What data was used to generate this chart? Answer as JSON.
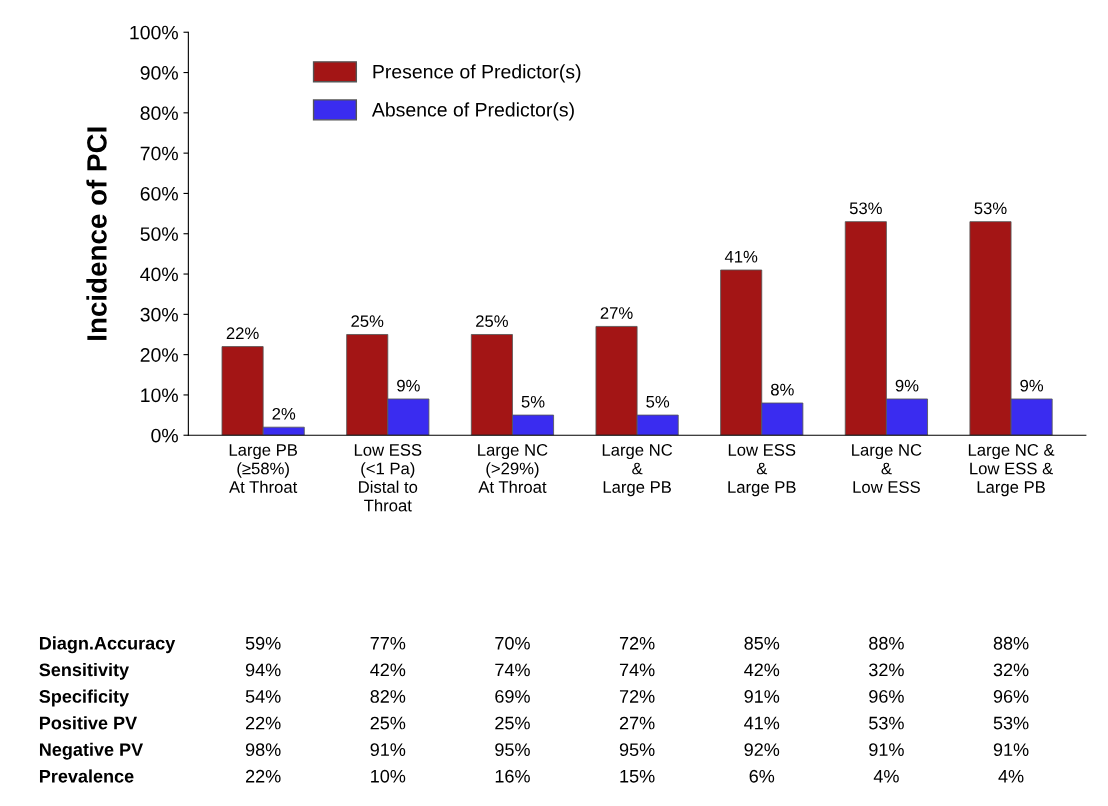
{
  "chart_data": {
    "type": "bar",
    "ylabel": "Incidence of PCI",
    "categories": [
      "Large PB\n(≥58%)\nAt Throat",
      "Low ESS\n(<1 Pa)\nDistal to\nThroat",
      "Large NC\n(>29%)\nAt Throat",
      "Large NC\n&\nLarge PB",
      "Low ESS\n&\nLarge PB",
      "Large NC\n&\nLow ESS",
      "Large NC &\nLow ESS &\nLarge PB"
    ],
    "series": [
      {
        "name": "Presence of Predictor(s)",
        "color": "#a31515",
        "values": [
          22,
          25,
          25,
          27,
          41,
          53,
          53
        ],
        "value_labels": [
          "22%",
          "25%",
          "25%",
          "27%",
          "41%",
          "53%",
          "53%"
        ]
      },
      {
        "name": "Absence of Predictor(s)",
        "color": "#3a2cf0",
        "values": [
          2,
          9,
          5,
          5,
          8,
          9,
          9
        ],
        "value_labels": [
          "2%",
          "9%",
          "5%",
          "5%",
          "8%",
          "9%",
          "9%"
        ]
      }
    ],
    "ylim": [
      0,
      100
    ],
    "yticks": [
      {
        "value": 0,
        "label": "0%"
      },
      {
        "value": 10,
        "label": "10%"
      },
      {
        "value": 20,
        "label": "20%"
      },
      {
        "value": 30,
        "label": "30%"
      },
      {
        "value": 40,
        "label": "40%"
      },
      {
        "value": 50,
        "label": "50%"
      },
      {
        "value": 60,
        "label": "60%"
      },
      {
        "value": 70,
        "label": "70%"
      },
      {
        "value": 80,
        "label": "80%"
      },
      {
        "value": 90,
        "label": "90%"
      },
      {
        "value": 100,
        "label": "100%"
      }
    ],
    "legend": "top left",
    "grid": false,
    "annotations": [
      "Diagn.Accuracy",
      "59%",
      "77%",
      "70%",
      "72%",
      "85%",
      "88%",
      "88%",
      "Sensitivity",
      "94%",
      "42%",
      "74%",
      "74%",
      "42%",
      "32%",
      "32%",
      "Specificity",
      "54%",
      "82%",
      "69%",
      "72%",
      "91%",
      "96%",
      "96%",
      "Positive PV",
      "22%",
      "25%",
      "25%",
      "27%",
      "41%",
      "53%",
      "53%",
      "Negative PV",
      "98%",
      "91%",
      "95%",
      "95%",
      "92%",
      "91%",
      "91%",
      "Prevalence",
      "22%",
      "10%",
      "16%",
      "15%",
      "6%",
      "4%",
      "4%"
    ]
  }
}
